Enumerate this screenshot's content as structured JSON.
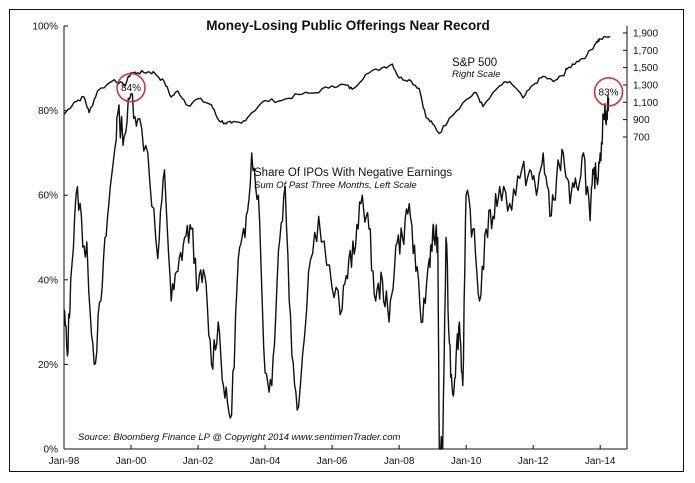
{
  "chart_data": {
    "type": "line",
    "title": "Money-Losing Public Offerings Near Record",
    "x_ticks": [
      "Jan-98",
      "Jan-00",
      "Jan-02",
      "Jan-04",
      "Jan-06",
      "Jan-08",
      "Jan-10",
      "Jan-12",
      "Jan-14"
    ],
    "left_axis": {
      "ticks": [
        "0%",
        "20%",
        "40%",
        "60%",
        "80%",
        "100%"
      ],
      "ylim": [
        0,
        100
      ],
      "unit": "%"
    },
    "right_axis": {
      "ticks": [
        "700",
        "900",
        "1,100",
        "1,300",
        "1,500",
        "1,700",
        "1,900"
      ],
      "ylim": [
        -2900,
        1980
      ]
    },
    "grid": false,
    "series": [
      {
        "name": "S&P 500",
        "subtitle": "Right Scale",
        "axis": "right",
        "x": [
          1998.0,
          1998.3,
          1998.6,
          1998.75,
          1999.0,
          1999.5,
          1999.8,
          2000.0,
          2000.2,
          2000.5,
          2000.7,
          2001.0,
          2001.2,
          2001.4,
          2001.7,
          2002.0,
          2002.4,
          2002.6,
          2002.8,
          2003.0,
          2003.3,
          2003.6,
          2004.0,
          2004.5,
          2005.0,
          2005.5,
          2006.0,
          2006.4,
          2006.6,
          2007.0,
          2007.5,
          2007.8,
          2008.0,
          2008.3,
          2008.6,
          2008.8,
          2009.0,
          2009.2,
          2009.5,
          2010.0,
          2010.3,
          2010.5,
          2011.0,
          2011.3,
          2011.7,
          2012.0,
          2012.3,
          2012.6,
          2012.9,
          2013.0,
          2013.3,
          2013.6,
          2013.9,
          2014.0,
          2014.3
        ],
        "values": [
          960,
          1100,
          1160,
          980,
          1230,
          1360,
          1290,
          1440,
          1440,
          1450,
          1440,
          1330,
          1160,
          1230,
          1060,
          1140,
          1070,
          900,
          860,
          860,
          860,
          980,
          1120,
          1120,
          1190,
          1210,
          1290,
          1300,
          1250,
          1420,
          1500,
          1540,
          1380,
          1360,
          1260,
          930,
          850,
          740,
          920,
          1130,
          1210,
          1050,
          1290,
          1340,
          1150,
          1300,
          1400,
          1340,
          1410,
          1480,
          1570,
          1640,
          1800,
          1830,
          1860
        ]
      },
      {
        "name": "Share Of IPOs With Negative Earnings",
        "subtitle": "Sum Of Past Three Months, Left Scale",
        "axis": "left",
        "x": [
          1998.0,
          1998.1,
          1998.2,
          1998.4,
          1998.6,
          1998.7,
          1998.9,
          1999.1,
          1999.3,
          1999.5,
          1999.6,
          1999.8,
          2000.0,
          2000.2,
          2000.5,
          2000.8,
          2001.0,
          2001.2,
          2001.4,
          2001.6,
          2001.8,
          2002.0,
          2002.2,
          2002.4,
          2002.6,
          2002.8,
          2003.0,
          2003.2,
          2003.4,
          2003.6,
          2003.8,
          2004.0,
          2004.2,
          2004.4,
          2004.6,
          2004.8,
          2005.0,
          2005.3,
          2005.6,
          2006.0,
          2006.3,
          2006.5,
          2006.7,
          2006.9,
          2007.1,
          2007.3,
          2007.5,
          2007.7,
          2007.9,
          2008.1,
          2008.3,
          2008.5,
          2008.7,
          2008.9,
          2009.0,
          2009.05,
          2009.15,
          2009.2,
          2009.3,
          2009.4,
          2009.5,
          2009.6,
          2009.7,
          2009.8,
          2009.9,
          2010.0,
          2010.2,
          2010.4,
          2010.6,
          2010.8,
          2011.0,
          2011.3,
          2011.6,
          2011.9,
          2012.1,
          2012.3,
          2012.5,
          2012.7,
          2012.9,
          2013.1,
          2013.3,
          2013.5,
          2013.7,
          2013.8,
          2013.9,
          2014.0,
          2014.1,
          2014.2,
          2014.25
        ],
        "values": [
          33,
          22,
          40,
          62,
          48,
          45,
          20,
          35,
          55,
          70,
          79,
          74,
          84,
          78,
          70,
          45,
          66,
          35,
          42,
          50,
          52,
          38,
          41,
          20,
          30,
          12,
          8,
          45,
          50,
          70,
          60,
          18,
          15,
          47,
          62,
          22,
          10,
          42,
          55,
          38,
          33,
          45,
          48,
          60,
          52,
          35,
          40,
          30,
          48,
          50,
          58,
          42,
          30,
          45,
          51,
          50,
          50,
          0,
          0,
          50,
          25,
          13,
          22,
          30,
          15,
          60,
          52,
          35,
          52,
          55,
          62,
          58,
          64,
          66,
          60,
          70,
          55,
          64,
          70,
          58,
          62,
          70,
          54,
          65,
          64,
          70,
          78,
          80,
          83
        ]
      }
    ],
    "annotations": [
      {
        "text": "84%",
        "series": "Share Of IPOs With Negative Earnings",
        "x": 2000.0,
        "y": 84
      },
      {
        "text": "83%",
        "series": "Share Of IPOs With Negative Earnings",
        "x": 2014.25,
        "y": 83
      }
    ],
    "source": "Source:  Bloomberg  Finance LP   @ Copyright 2014   www.sentimenTrader.com"
  },
  "colors": {
    "line": "#111111",
    "circle": "#d12a2a",
    "frame": "#111111"
  }
}
